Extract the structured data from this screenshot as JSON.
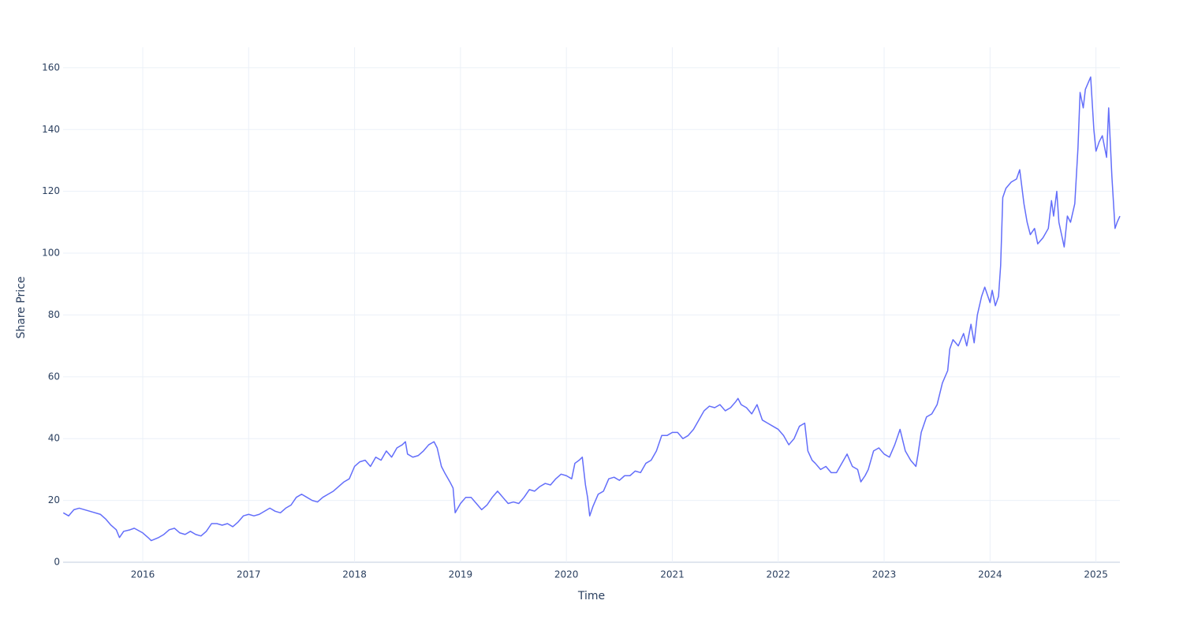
{
  "chart_data": {
    "type": "line",
    "x_label": "Time",
    "y_label": "Share Price",
    "color": "#636efa",
    "grid": true,
    "xlim": [
      2015.248,
      2025.226
    ],
    "xticks": [
      2016,
      2017,
      2018,
      2019,
      2020,
      2021,
      2022,
      2023,
      2024,
      2025
    ],
    "ylim": [
      0,
      166.6
    ],
    "yticks": [
      0,
      20,
      40,
      60,
      80,
      100,
      120,
      140,
      160
    ],
    "x": [
      2015.25,
      2015.3,
      2015.35,
      2015.4,
      2015.5,
      2015.6,
      2015.65,
      2015.7,
      2015.75,
      2015.78,
      2015.82,
      2015.88,
      2015.92,
      2016.0,
      2016.05,
      2016.08,
      2016.15,
      2016.2,
      2016.25,
      2016.3,
      2016.35,
      2016.4,
      2016.45,
      2016.5,
      2016.55,
      2016.6,
      2016.65,
      2016.7,
      2016.75,
      2016.8,
      2016.85,
      2016.9,
      2016.95,
      2017.0,
      2017.05,
      2017.1,
      2017.2,
      2017.25,
      2017.3,
      2017.35,
      2017.4,
      2017.45,
      2017.5,
      2017.55,
      2017.6,
      2017.65,
      2017.7,
      2017.75,
      2017.8,
      2017.85,
      2017.9,
      2017.95,
      2018.0,
      2018.05,
      2018.1,
      2018.15,
      2018.2,
      2018.25,
      2018.3,
      2018.35,
      2018.4,
      2018.45,
      2018.48,
      2018.5,
      2018.55,
      2018.6,
      2018.65,
      2018.7,
      2018.75,
      2018.78,
      2018.82,
      2018.85,
      2018.9,
      2018.93,
      2018.95,
      2019.0,
      2019.05,
      2019.1,
      2019.15,
      2019.2,
      2019.25,
      2019.3,
      2019.35,
      2019.4,
      2019.45,
      2019.5,
      2019.55,
      2019.6,
      2019.65,
      2019.7,
      2019.75,
      2019.8,
      2019.85,
      2019.9,
      2019.95,
      2020.0,
      2020.05,
      2020.08,
      2020.12,
      2020.15,
      2020.18,
      2020.2,
      2020.22,
      2020.25,
      2020.3,
      2020.35,
      2020.4,
      2020.45,
      2020.5,
      2020.55,
      2020.6,
      2020.65,
      2020.7,
      2020.75,
      2020.8,
      2020.85,
      2020.9,
      2020.95,
      2021.0,
      2021.05,
      2021.1,
      2021.15,
      2021.2,
      2021.25,
      2021.3,
      2021.35,
      2021.4,
      2021.45,
      2021.5,
      2021.55,
      2021.6,
      2021.62,
      2021.65,
      2021.7,
      2021.75,
      2021.8,
      2021.85,
      2021.9,
      2021.95,
      2022.0,
      2022.05,
      2022.1,
      2022.15,
      2022.2,
      2022.25,
      2022.28,
      2022.32,
      2022.35,
      2022.4,
      2022.45,
      2022.5,
      2022.55,
      2022.6,
      2022.65,
      2022.7,
      2022.75,
      2022.78,
      2022.82,
      2022.85,
      2022.9,
      2022.95,
      2023.0,
      2023.05,
      2023.1,
      2023.15,
      2023.2,
      2023.25,
      2023.3,
      2023.32,
      2023.35,
      2023.4,
      2023.45,
      2023.5,
      2023.55,
      2023.6,
      2023.62,
      2023.65,
      2023.7,
      2023.75,
      2023.78,
      2023.82,
      2023.85,
      2023.88,
      2023.92,
      2023.95,
      2024.0,
      2024.02,
      2024.05,
      2024.08,
      2024.1,
      2024.12,
      2024.15,
      2024.2,
      2024.25,
      2024.28,
      2024.32,
      2024.35,
      2024.38,
      2024.42,
      2024.45,
      2024.5,
      2024.55,
      2024.58,
      2024.6,
      2024.63,
      2024.65,
      2024.7,
      2024.73,
      2024.76,
      2024.8,
      2024.83,
      2024.85,
      2024.88,
      2024.9,
      2024.95,
      2024.98,
      2025.0,
      2025.03,
      2025.06,
      2025.1,
      2025.12,
      2025.15,
      2025.18,
      2025.2,
      2025.226
    ],
    "values": [
      16,
      15,
      17,
      17.5,
      16.5,
      15.5,
      14,
      12,
      10.5,
      8,
      10,
      10.5,
      11,
      9.5,
      8,
      7,
      8,
      9,
      10.5,
      11,
      9.5,
      9,
      10,
      9,
      8.5,
      10,
      12.5,
      12.5,
      12,
      12.5,
      11.5,
      13,
      15,
      15.5,
      15,
      15.5,
      17.5,
      16.5,
      16,
      17.5,
      18.5,
      21,
      22,
      21,
      20,
      19.5,
      21,
      22,
      23,
      24.5,
      26,
      27,
      31,
      32.5,
      33,
      31,
      34,
      33,
      36,
      34,
      37,
      38,
      39,
      35,
      34,
      34.5,
      36,
      38,
      39,
      37,
      31,
      29,
      26,
      24,
      16,
      19,
      21,
      21,
      19,
      17,
      18.5,
      21,
      23,
      21,
      19,
      19.5,
      19,
      21,
      23.5,
      23,
      24.5,
      25.5,
      25,
      27,
      28.5,
      28,
      27,
      32,
      33,
      34,
      25,
      21,
      15,
      18,
      22,
      23,
      27,
      27.5,
      26.5,
      28,
      28,
      29.5,
      29,
      32,
      33,
      36,
      41,
      41,
      42,
      42,
      40,
      41,
      43,
      46,
      49,
      50.5,
      50,
      51,
      49,
      50,
      52,
      53,
      51,
      50,
      48,
      51,
      46,
      45,
      44,
      43,
      41,
      38,
      40,
      44,
      45,
      36,
      33,
      32,
      30,
      31,
      29,
      29,
      32,
      35,
      31,
      30,
      26,
      28,
      30,
      36,
      37,
      35,
      34,
      38,
      43,
      36,
      33,
      31,
      35,
      42,
      47,
      48,
      51,
      58,
      62,
      69,
      72,
      70,
      74,
      70,
      77,
      71,
      80,
      86,
      89,
      84,
      88,
      83,
      86,
      96,
      118,
      121,
      123,
      124,
      127,
      116,
      110,
      106,
      108,
      103,
      105,
      108,
      117,
      112,
      120,
      110,
      102,
      112,
      110,
      116,
      134,
      152,
      147,
      153,
      157,
      140,
      133,
      136,
      138,
      131,
      147,
      125,
      108,
      110,
      112
    ]
  }
}
